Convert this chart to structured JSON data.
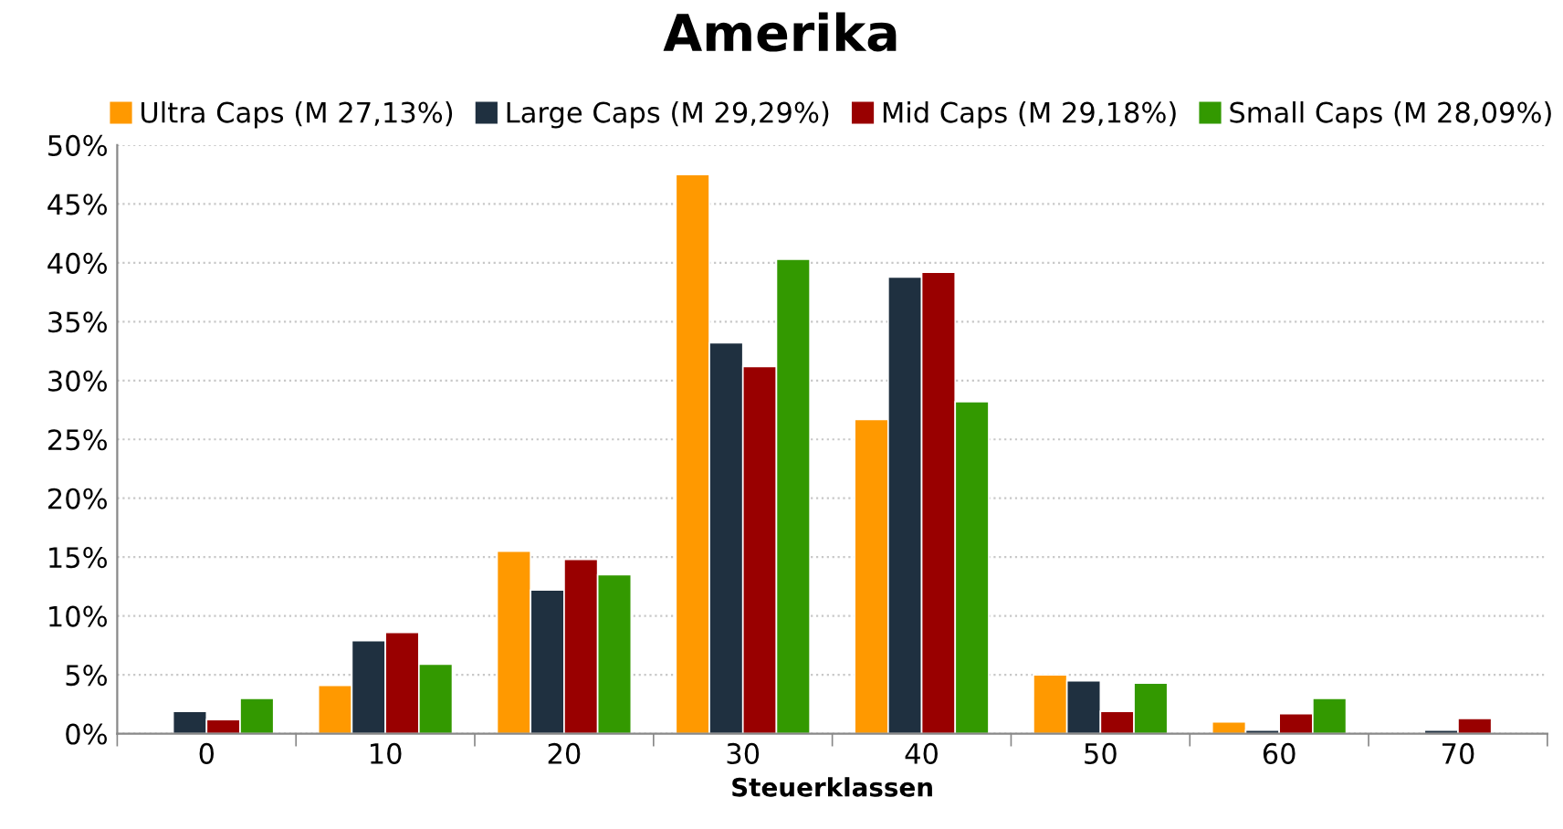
{
  "chart_data": {
    "type": "bar",
    "title": "Amerika",
    "xlabel": "Steuerklassen",
    "categories": [
      "0",
      "10",
      "20",
      "30",
      "40",
      "50",
      "60",
      "70"
    ],
    "series": [
      {
        "name": "Ultra Caps (M 27,13%)",
        "color": "#ff9900",
        "values": [
          null,
          4.1,
          15.5,
          47.5,
          26.7,
          5.0,
          1.0,
          null
        ]
      },
      {
        "name": "Large Caps (M 29,29%)",
        "color": "#1f3040",
        "values": [
          1.9,
          7.9,
          12.2,
          33.2,
          38.8,
          4.5,
          0.3,
          0.3
        ]
      },
      {
        "name": "Mid Caps (M 29,18%)",
        "color": "#990000",
        "values": [
          1.2,
          8.6,
          14.8,
          31.2,
          39.2,
          1.9,
          1.7,
          1.3
        ]
      },
      {
        "name": "Small Caps (M 28,09%)",
        "color": "#339900",
        "values": [
          3.0,
          5.9,
          13.5,
          40.3,
          28.2,
          4.3,
          3.0,
          null
        ]
      }
    ],
    "ylim": [
      0,
      50
    ],
    "yticks": [
      {
        "value": 0,
        "label": "0%"
      },
      {
        "value": 5,
        "label": "5%"
      },
      {
        "value": 10,
        "label": "10%"
      },
      {
        "value": 15,
        "label": "15%"
      },
      {
        "value": 20,
        "label": "20%"
      },
      {
        "value": 25,
        "label": "25%"
      },
      {
        "value": 30,
        "label": "30%"
      },
      {
        "value": 35,
        "label": "35%"
      },
      {
        "value": 40,
        "label": "40%"
      },
      {
        "value": 45,
        "label": "45%"
      },
      {
        "value": 50,
        "label": "50%"
      }
    ],
    "grid": "y",
    "legend": "top"
  }
}
